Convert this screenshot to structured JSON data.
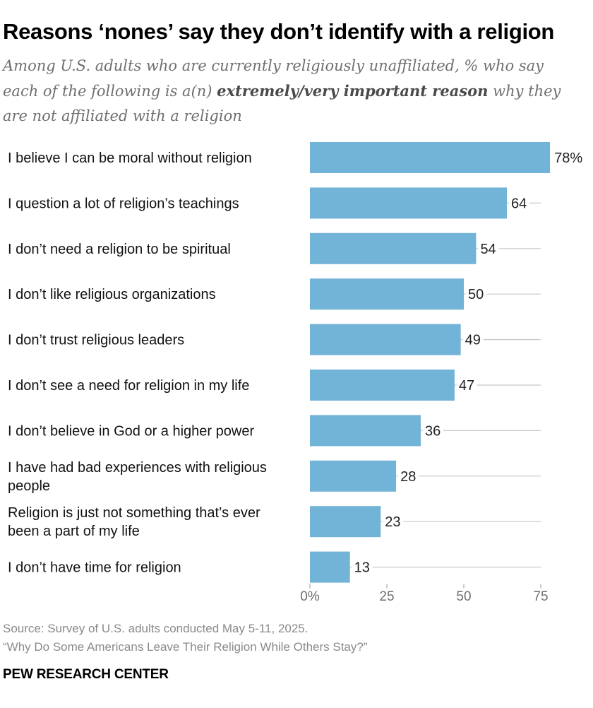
{
  "header": {
    "title": "Reasons ‘nones’ say they don’t identify with a religion",
    "subtitle_pre": "Among U.S. adults who are currently religiously unaffiliated, % who say each of the following is a(n) ",
    "subtitle_bold": "extremely/very important reason",
    "subtitle_post": " why they are not affiliated with a religion"
  },
  "chart_data": {
    "type": "bar",
    "orientation": "horizontal",
    "categories": [
      [
        "I believe I can be moral without religion"
      ],
      [
        "I question a lot of religion’s teachings"
      ],
      [
        "I don’t need a religion to be spiritual"
      ],
      [
        "I don’t like religious organizations"
      ],
      [
        "I don’t trust religious leaders"
      ],
      [
        "I don’t see a need for religion in my life"
      ],
      [
        "I don’t believe in God or a higher power"
      ],
      [
        "I have had bad experiences with religious",
        "people"
      ],
      [
        "Religion is just not something that’s ever",
        "been a part of my life"
      ],
      [
        "I don’t have time for religion"
      ]
    ],
    "values": [
      78,
      64,
      54,
      50,
      49,
      47,
      36,
      28,
      23,
      13
    ],
    "value_labels": [
      "78%",
      "64",
      "54",
      "50",
      "49",
      "47",
      "36",
      "28",
      "23",
      "13"
    ],
    "xlim": [
      0,
      75
    ],
    "xticks": [
      0,
      25,
      50,
      75
    ],
    "xtick_labels": [
      "0%",
      "25",
      "50",
      "75"
    ],
    "bar_color": "#72b3d8",
    "track_color": "#c8c8c8",
    "tick_color": "#9a9a9a"
  },
  "footer": {
    "source": "Source: Survey of U.S. adults conducted May 5-11, 2025.",
    "report": "“Why Do Some Americans Leave Their Religion While Others Stay?”",
    "org": "PEW RESEARCH CENTER"
  }
}
